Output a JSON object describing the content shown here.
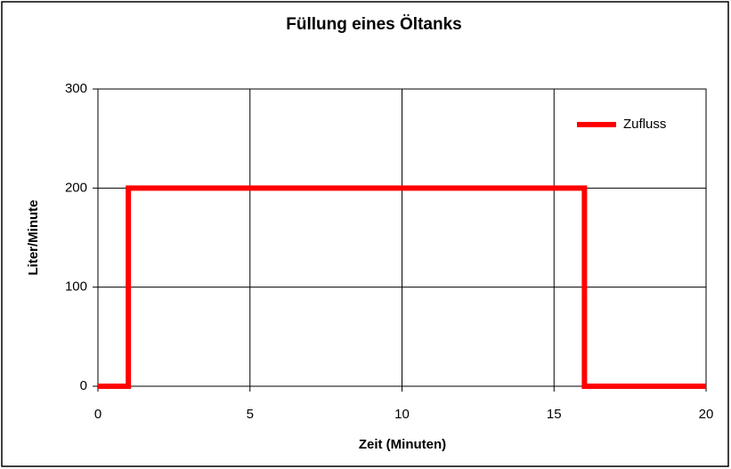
{
  "chart_data": {
    "type": "line",
    "title": "Füllung eines Öltanks",
    "x_label": "Zeit (Minuten)",
    "y_label": "Liter/Minute",
    "series": [
      {
        "name": "Zufluss",
        "color": "#ff0000",
        "x": [
          0,
          1,
          1,
          16,
          16,
          20
        ],
        "values": [
          0,
          0,
          200,
          200,
          0,
          0
        ]
      }
    ],
    "xlim": [
      0,
      20
    ],
    "xticks": [
      0,
      5,
      10,
      15,
      20
    ],
    "ylim": [
      0,
      300
    ],
    "yticks": [
      0,
      100,
      200,
      300
    ],
    "grid": true,
    "legend": "upper right"
  }
}
